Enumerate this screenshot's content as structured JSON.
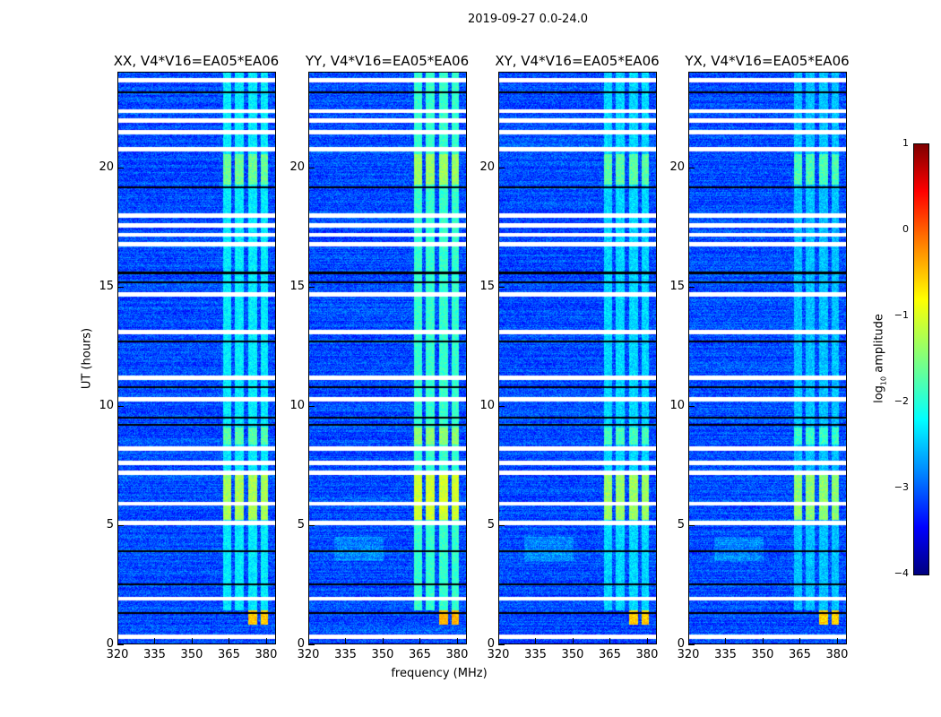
{
  "chart_data": {
    "type": "heatmap",
    "title": "2019-09-27 0.0-24.0",
    "xlabel": "frequency (MHz)",
    "ylabel": "UT (hours)",
    "xlim": [
      320,
      384
    ],
    "ylim": [
      0,
      24
    ],
    "xticks": [
      "320",
      "335",
      "350",
      "365",
      "380"
    ],
    "yticks": [
      "0",
      "5",
      "10",
      "15",
      "20"
    ],
    "panels": [
      {
        "title": "XX, V4*V16=EA05*EA06",
        "strength": 1.0
      },
      {
        "title": "YY, V4*V16=EA05*EA06",
        "strength": 1.15
      },
      {
        "title": "XY, V4*V16=EA05*EA06",
        "strength": 0.95
      },
      {
        "title": "YX, V4*V16=EA05*EA06",
        "strength": 0.9
      }
    ],
    "colorbar": {
      "label": "log10 amplitude",
      "label_main": "log",
      "label_sub": "10",
      "label_rest": " amplitude",
      "range": [
        -4,
        1
      ],
      "ticks": [
        "1",
        "0",
        "−1",
        "−2",
        "−3",
        "−4"
      ],
      "colormap": "jet"
    },
    "background_level": -3.0,
    "flagged_times_hours": [
      0.3,
      1.9,
      5.1,
      5.9,
      7.2,
      7.6,
      8.2,
      10.3,
      11.2,
      13.1,
      14.7,
      16.8,
      17.2,
      17.6,
      18.0,
      20.8,
      21.5,
      22.0,
      22.4,
      23.7
    ],
    "gap_times_hours": [
      1.3,
      2.5,
      3.9,
      9.2,
      9.5,
      10.8,
      12.7,
      15.2,
      15.6,
      19.2,
      23.2
    ],
    "rfi_channels_mhz": [
      [
        362.5,
        366
      ],
      [
        367.5,
        371
      ],
      [
        373,
        376.5
      ],
      [
        378,
        381
      ]
    ],
    "rfi_events": [
      {
        "t0": 0.8,
        "t1": 1.4,
        "f0": 372.5,
        "f1": 381,
        "level": -0.6
      },
      {
        "t0": 5.2,
        "t1": 7.1,
        "f0": 362.5,
        "f1": 381,
        "level": -1.3
      },
      {
        "t0": 8.4,
        "t1": 9.1,
        "f0": 362.5,
        "f1": 381,
        "level": -1.7
      },
      {
        "t0": 19.3,
        "t1": 20.6,
        "f0": 362.5,
        "f1": 381,
        "level": -1.6
      },
      {
        "t0": 1.4,
        "t1": 24,
        "f0": 362.5,
        "f1": 381,
        "level": -2.2
      }
    ]
  }
}
